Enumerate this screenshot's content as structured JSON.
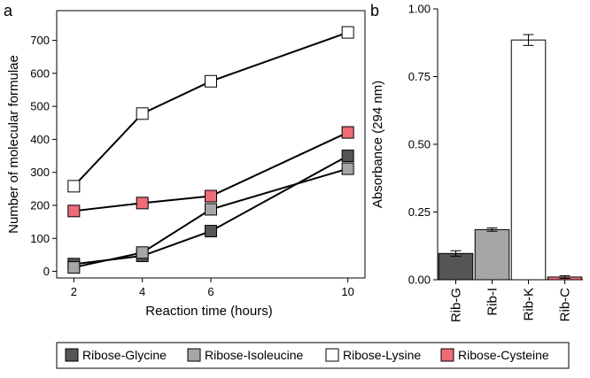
{
  "chart_data": [
    {
      "panel": "a",
      "type": "line",
      "xlabel": "Reaction time (hours)",
      "ylabel": "Number of molecular formulae",
      "x": [
        2,
        4,
        6,
        10
      ],
      "xticks": [
        2,
        4,
        6,
        10
      ],
      "xlim": [
        1.5,
        10.5
      ],
      "yticks": [
        0,
        100,
        200,
        300,
        400,
        500,
        600,
        700
      ],
      "ylim": [
        -20,
        790
      ],
      "grid": false,
      "series": [
        {
          "name": "Ribose-Glycine",
          "values": [
            22,
            47,
            122,
            350
          ],
          "color": "#555555"
        },
        {
          "name": "Ribose-Isoleucine",
          "values": [
            12,
            57,
            188,
            311
          ],
          "color": "#a6a6a6"
        },
        {
          "name": "Ribose-Lysine",
          "values": [
            258,
            478,
            576,
            724
          ],
          "color": "#ffffff"
        },
        {
          "name": "Ribose-Cysteine",
          "values": [
            183,
            207,
            228,
            421
          ],
          "color": "#ef6b78"
        }
      ]
    },
    {
      "panel": "b",
      "type": "bar",
      "ylabel": "Absorbance (294 nm)",
      "categories": [
        "Rib-G",
        "Rib-I",
        "Rib-K",
        "Rib-C"
      ],
      "values": [
        0.097,
        0.185,
        0.885,
        0.01
      ],
      "errors": [
        0.01,
        0.006,
        0.02,
        0.005
      ],
      "colors": [
        "#555555",
        "#a6a6a6",
        "#ffffff",
        "#ef6b78"
      ],
      "yticks": [
        "0.00",
        "0.25",
        "0.50",
        "0.75",
        "1.00"
      ],
      "ylim": [
        0,
        1.0
      ],
      "grid": false
    }
  ],
  "legend": {
    "position": "bottom",
    "items": [
      {
        "label": "Ribose-Glycine",
        "color": "#555555"
      },
      {
        "label": "Ribose-Isoleucine",
        "color": "#a6a6a6"
      },
      {
        "label": "Ribose-Lysine",
        "color": "#ffffff"
      },
      {
        "label": "Ribose-Cysteine",
        "color": "#ef6b78"
      }
    ]
  }
}
